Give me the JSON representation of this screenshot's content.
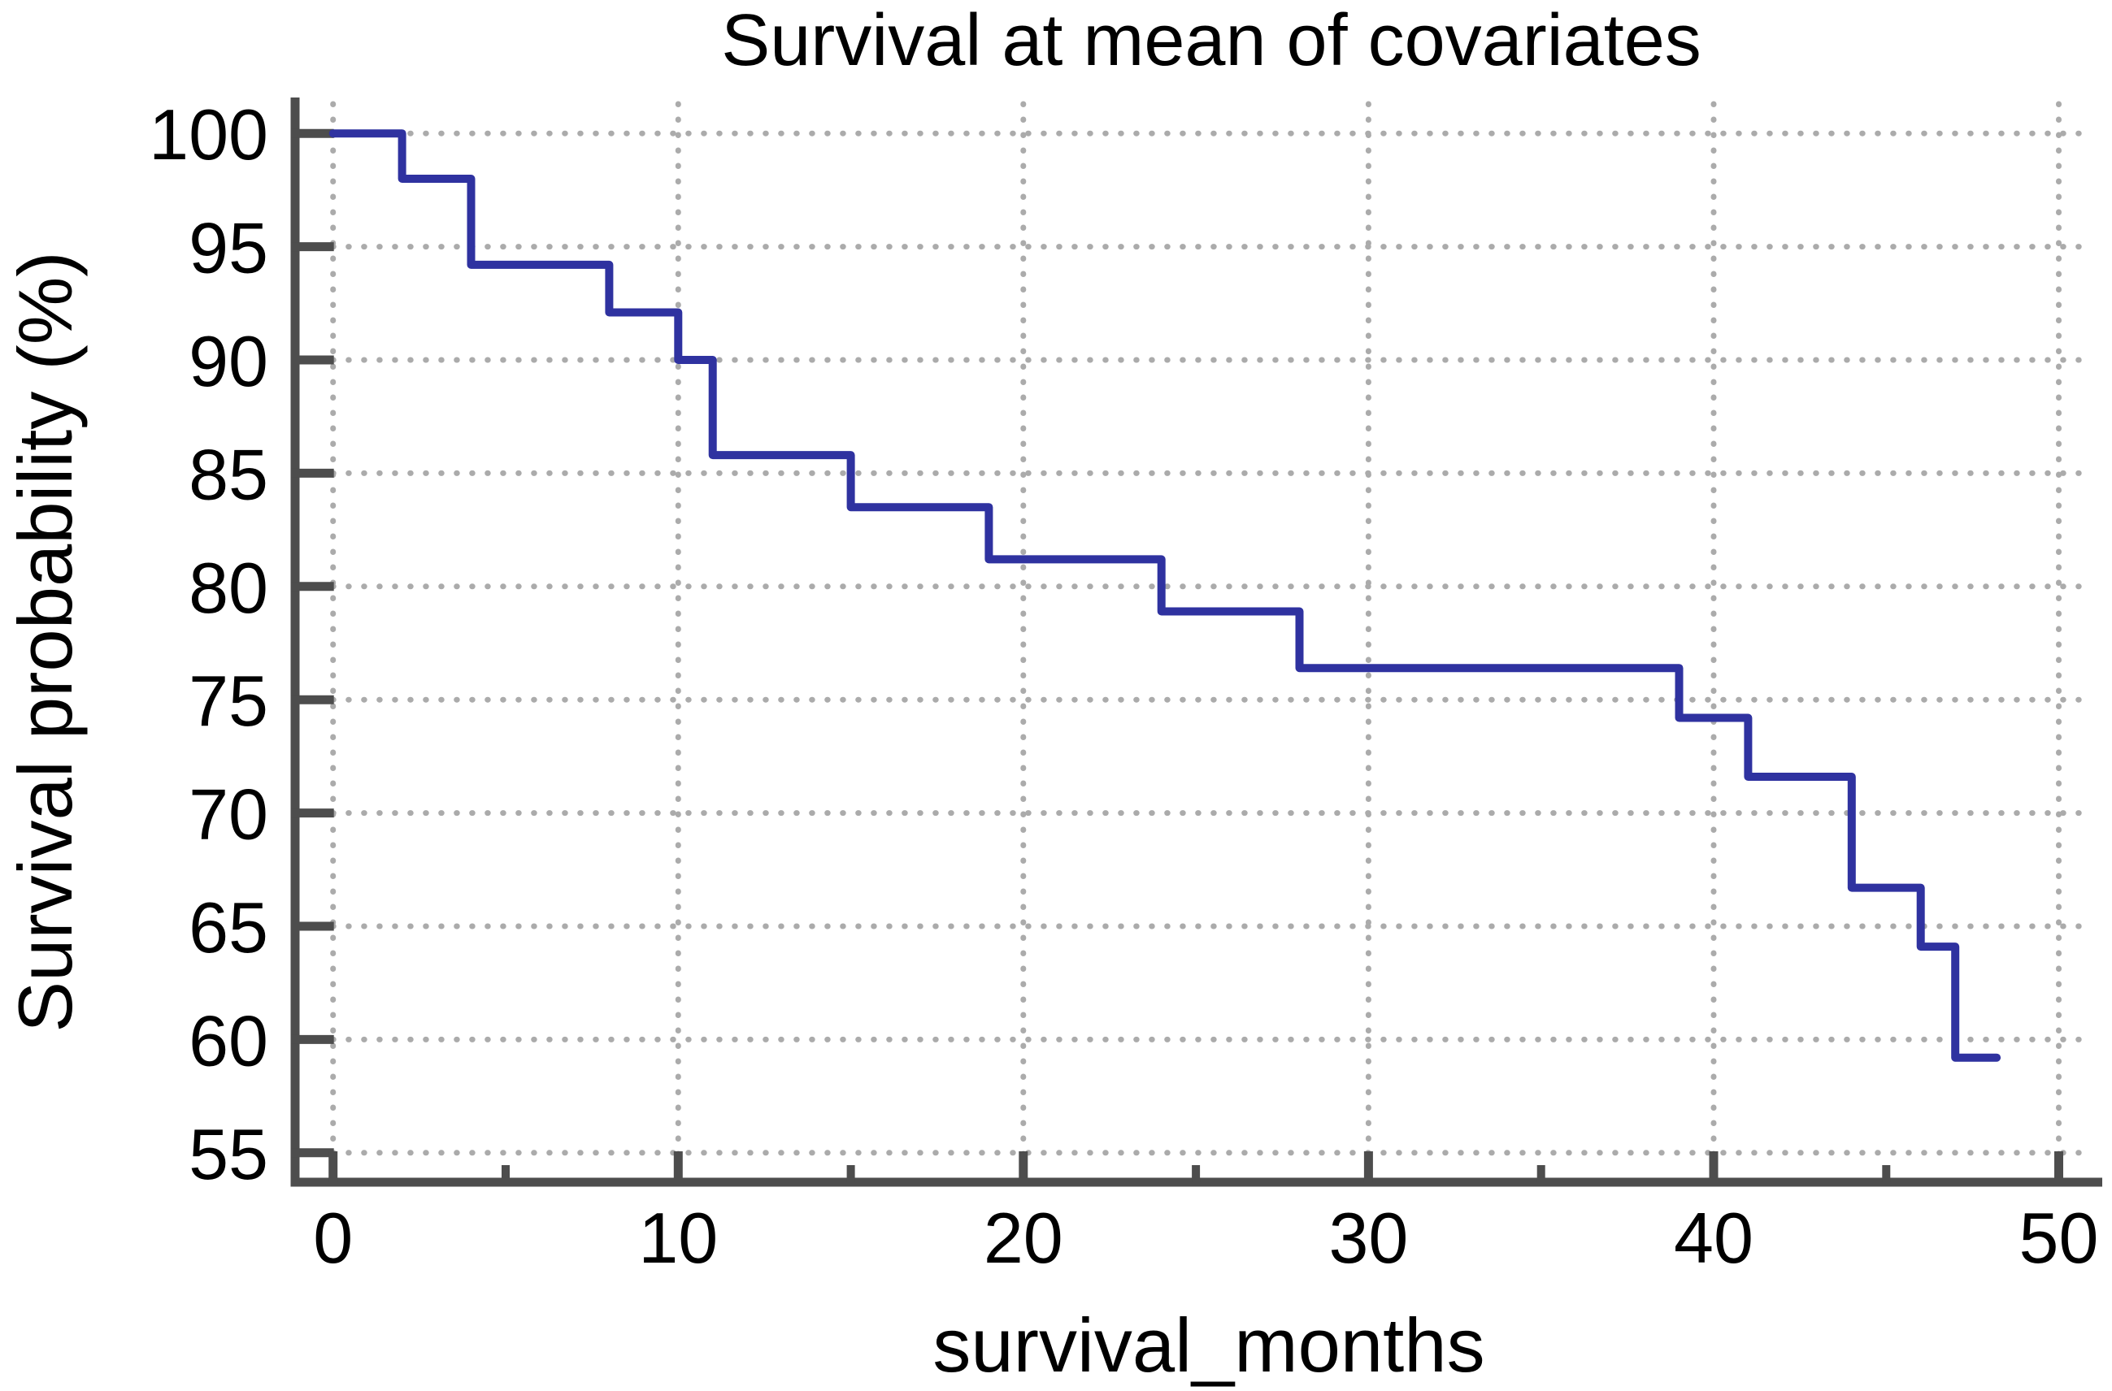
{
  "chart_data": {
    "type": "line",
    "variant": "kaplan-meier-step-survival",
    "title": "Survival at mean of covariates",
    "xlabel": "survival_months",
    "ylabel": "Survival probability (%)",
    "x_ticks_major": [
      0,
      10,
      20,
      30,
      40,
      50
    ],
    "x_ticks_minor": [
      5,
      15,
      25,
      35,
      45
    ],
    "y_ticks": [
      100,
      95,
      90,
      85,
      80,
      75,
      70,
      65,
      60,
      55
    ],
    "xlim": [
      -1.1,
      51
    ],
    "ylim": [
      53.7,
      101.3
    ],
    "grid": {
      "horizontal": "dotted",
      "vertical": "dotted"
    },
    "legend_position": "none",
    "series": [
      {
        "name": "Survival at mean of covariates",
        "steps": [
          {
            "t": 0,
            "s": 100.0
          },
          {
            "t": 2,
            "s": 98.0
          },
          {
            "t": 4,
            "s": 94.2
          },
          {
            "t": 8,
            "s": 92.1
          },
          {
            "t": 10,
            "s": 90.0
          },
          {
            "t": 11,
            "s": 85.8
          },
          {
            "t": 15,
            "s": 83.5
          },
          {
            "t": 19,
            "s": 81.2
          },
          {
            "t": 24,
            "s": 78.9
          },
          {
            "t": 28,
            "s": 76.4
          },
          {
            "t": 39,
            "s": 74.2
          },
          {
            "t": 41,
            "s": 71.6
          },
          {
            "t": 44,
            "s": 66.7
          },
          {
            "t": 46,
            "s": 64.1
          },
          {
            "t": 47,
            "s": 59.2
          }
        ],
        "end_time": 48.2
      }
    ],
    "style": {
      "curve_color": "#2f32a0",
      "axis_color": "#4d4d4d",
      "grid_color": "#ababab",
      "text_color": "#000000",
      "background": "#ffffff"
    }
  }
}
